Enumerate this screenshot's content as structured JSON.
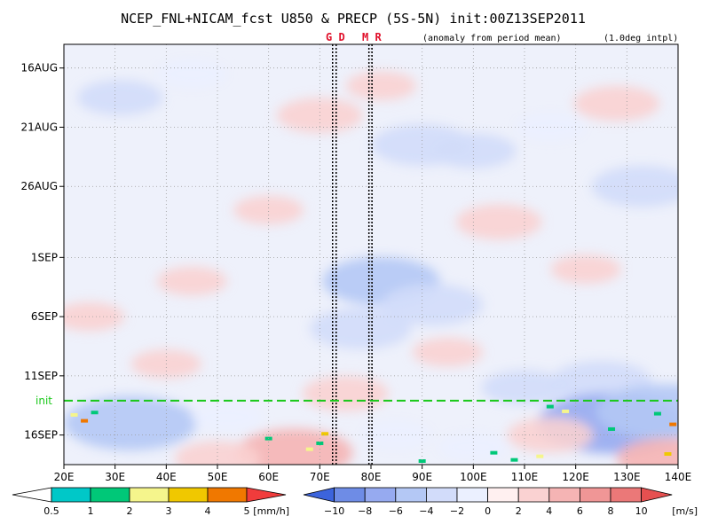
{
  "chart_data": {
    "type": "heatmap",
    "title": "NCEP_FNL+NICAM_fcst U850 & PRECP (5S-5N) init:00Z13SEP2011",
    "subtitle_left": "(anomaly from period mean)",
    "subtitle_right": "(1.0deg intpl)",
    "x_ticks": [
      "20E",
      "30E",
      "40E",
      "50E",
      "60E",
      "70E",
      "80E",
      "90E",
      "100E",
      "110E",
      "120E",
      "130E",
      "140E"
    ],
    "x_values": [
      20,
      30,
      40,
      50,
      60,
      70,
      80,
      90,
      100,
      110,
      120,
      130,
      140
    ],
    "xlim": [
      20,
      140
    ],
    "y_ticks": [
      "16AUG",
      "21AUG",
      "26AUG",
      "1SEP",
      "6SEP",
      "11SEP",
      "16SEP"
    ],
    "y_day_offsets": [
      0,
      5,
      10,
      16,
      21,
      26,
      31
    ],
    "ylim_days": [
      -2.0,
      33.5
    ],
    "init_label": "init",
    "init_day_offset": 28.1,
    "markers": [
      {
        "label": "G",
        "lon": 72.5
      },
      {
        "label": "D",
        "lon": 73.2
      },
      {
        "label": "M",
        "lon": 79.6
      },
      {
        "label": "R",
        "lon": 80.2
      }
    ],
    "marker_text_1": "G D",
    "marker_text_2": "M R",
    "precip_colorbar": {
      "ticks": [
        "0.5",
        "1",
        "2",
        "3",
        "4",
        "5"
      ],
      "unit": "[mm/h]",
      "colors": [
        "#ffffff",
        "#00c8c8",
        "#00c878",
        "#f5f58c",
        "#f0c800",
        "#f07800",
        "#f03c3c"
      ]
    },
    "wind_colorbar": {
      "ticks": [
        "−10",
        "−8",
        "−6",
        "−4",
        "−2",
        "0",
        "2",
        "4",
        "6",
        "8",
        "10"
      ],
      "unit": "[m/s]",
      "colors": [
        "#3c64dc",
        "#6e8ce6",
        "#96aaf0",
        "#b4c8f5",
        "#d2dcfa",
        "#ebf0ff",
        "#fff0f0",
        "#fad2d2",
        "#f5b4b4",
        "#f09696",
        "#eb7878",
        "#e65050"
      ]
    },
    "u850_anomaly_blobs": [
      {
        "lon": 31,
        "day": 2.5,
        "v": -3
      },
      {
        "lon": 45,
        "day": 0.5,
        "v": -2
      },
      {
        "lon": 90,
        "day": 6.5,
        "v": -4
      },
      {
        "lon": 100,
        "day": 7,
        "v": -3
      },
      {
        "lon": 115,
        "day": 5,
        "v": -2
      },
      {
        "lon": 133,
        "day": 10,
        "v": -4
      },
      {
        "lon": 82,
        "day": 18,
        "v": -5
      },
      {
        "lon": 92,
        "day": 20,
        "v": -4
      },
      {
        "lon": 78,
        "day": 22,
        "v": -4
      },
      {
        "lon": 110,
        "day": 27,
        "v": -3
      },
      {
        "lon": 125,
        "day": 26.5,
        "v": -4
      },
      {
        "lon": 33,
        "day": 30,
        "v": -6
      },
      {
        "lon": 127,
        "day": 30,
        "v": -7
      },
      {
        "lon": 137,
        "day": 29,
        "v": -6
      },
      {
        "lon": 52,
        "day": 29.5,
        "v": -2
      },
      {
        "lon": 85,
        "day": 31,
        "v": -2
      },
      {
        "lon": 100,
        "day": 32,
        "v": -2
      },
      {
        "lon": 70,
        "day": 4,
        "v": 3
      },
      {
        "lon": 82,
        "day": 1.5,
        "v": 2
      },
      {
        "lon": 60,
        "day": 12,
        "v": 2
      },
      {
        "lon": 105,
        "day": 13,
        "v": 3
      },
      {
        "lon": 25,
        "day": 21,
        "v": 2
      },
      {
        "lon": 40,
        "day": 25,
        "v": 2
      },
      {
        "lon": 75,
        "day": 27.5,
        "v": 3
      },
      {
        "lon": 95,
        "day": 24,
        "v": 2
      },
      {
        "lon": 65,
        "day": 32.5,
        "v": 5
      },
      {
        "lon": 50,
        "day": 33,
        "v": 3
      },
      {
        "lon": 115,
        "day": 31,
        "v": 3
      },
      {
        "lon": 138,
        "day": 33,
        "v": 4
      },
      {
        "lon": 45,
        "day": 18,
        "v": 2
      },
      {
        "lon": 122,
        "day": 17,
        "v": 2
      },
      {
        "lon": 128,
        "day": 3,
        "v": 3
      }
    ],
    "precip_spots": [
      {
        "lon": 22,
        "day": 29.3,
        "v": 3
      },
      {
        "lon": 24,
        "day": 29.8,
        "v": 5
      },
      {
        "lon": 26,
        "day": 29.1,
        "v": 2
      },
      {
        "lon": 70,
        "day": 31.7,
        "v": 2
      },
      {
        "lon": 68,
        "day": 32.2,
        "v": 3
      },
      {
        "lon": 71,
        "day": 30.9,
        "v": 4
      },
      {
        "lon": 104,
        "day": 32.5,
        "v": 2
      },
      {
        "lon": 108,
        "day": 33.1,
        "v": 2
      },
      {
        "lon": 115,
        "day": 28.6,
        "v": 2
      },
      {
        "lon": 118,
        "day": 29,
        "v": 3
      },
      {
        "lon": 127,
        "day": 30.5,
        "v": 2
      },
      {
        "lon": 139,
        "day": 30.1,
        "v": 5
      },
      {
        "lon": 138,
        "day": 32.6,
        "v": 4
      },
      {
        "lon": 60,
        "day": 31.3,
        "v": 2
      },
      {
        "lon": 90,
        "day": 33.2,
        "v": 2
      },
      {
        "lon": 113,
        "day": 32.8,
        "v": 3
      },
      {
        "lon": 136,
        "day": 29.2,
        "v": 2
      }
    ]
  }
}
